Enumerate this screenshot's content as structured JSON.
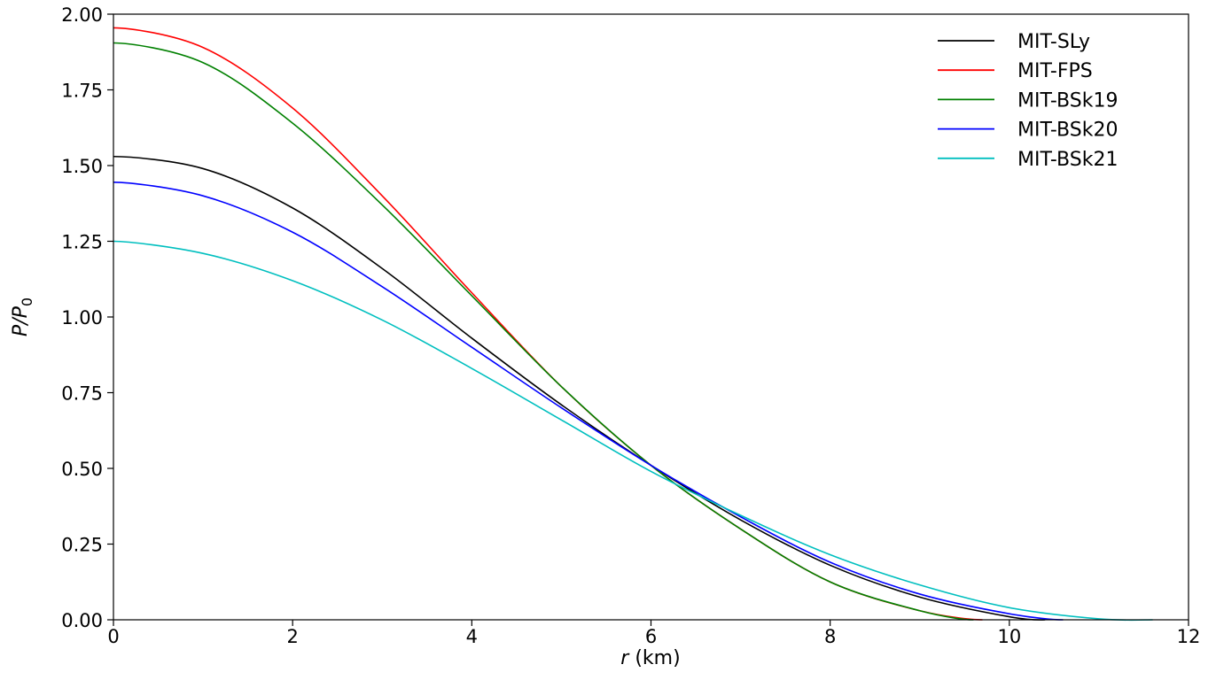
{
  "chart_data": {
    "type": "line",
    "title": "",
    "xlabel_italic": "r",
    "xlabel_rest": " (km)",
    "ylabel_main": "P/P",
    "ylabel_sub": "0",
    "xlim": [
      0,
      12
    ],
    "ylim": [
      0,
      2.0
    ],
    "xticks": [
      "0",
      "2",
      "4",
      "6",
      "8",
      "10",
      "12"
    ],
    "yticks": [
      "0.00",
      "0.25",
      "0.50",
      "0.75",
      "1.00",
      "1.25",
      "1.50",
      "1.75",
      "2.00"
    ],
    "grid": false,
    "legend_position": "top-right",
    "series": [
      {
        "name": "MIT-SLy",
        "color": "#000000",
        "x": [
          0,
          1,
          2,
          3,
          4,
          5,
          6,
          7,
          8,
          9,
          10,
          10.4
        ],
        "y": [
          1.53,
          1.49,
          1.36,
          1.16,
          0.93,
          0.71,
          0.51,
          0.33,
          0.18,
          0.075,
          0.01,
          0
        ]
      },
      {
        "name": "MIT-FPS",
        "color": "#ff0000",
        "x": [
          0,
          1,
          2,
          3,
          4,
          5,
          6,
          7,
          8,
          9,
          9.7
        ],
        "y": [
          1.955,
          1.89,
          1.69,
          1.4,
          1.08,
          0.77,
          0.51,
          0.3,
          0.125,
          0.03,
          0
        ]
      },
      {
        "name": "MIT-BSk19",
        "color": "#008000",
        "x": [
          0,
          1,
          2,
          3,
          4,
          5,
          6,
          7,
          8,
          9,
          9.6
        ],
        "y": [
          1.905,
          1.84,
          1.64,
          1.37,
          1.07,
          0.77,
          0.51,
          0.3,
          0.125,
          0.03,
          0
        ]
      },
      {
        "name": "MIT-BSk20",
        "color": "#0000ff",
        "x": [
          0,
          1,
          2,
          3,
          4,
          5,
          6,
          7,
          8,
          9,
          10,
          10.6
        ],
        "y": [
          1.445,
          1.4,
          1.28,
          1.1,
          0.9,
          0.7,
          0.51,
          0.34,
          0.19,
          0.085,
          0.02,
          0
        ]
      },
      {
        "name": "MIT-BSk21",
        "color": "#00bfbf",
        "x": [
          0,
          1,
          2,
          3,
          4,
          5,
          6,
          7,
          8,
          9,
          10,
          11,
          11.6
        ],
        "y": [
          1.25,
          1.21,
          1.12,
          0.99,
          0.83,
          0.66,
          0.49,
          0.345,
          0.215,
          0.115,
          0.04,
          0.003,
          0
        ]
      }
    ]
  }
}
